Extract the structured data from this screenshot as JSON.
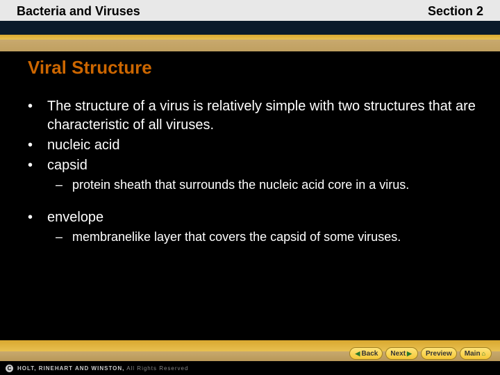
{
  "header": {
    "left": "Bacteria and Viruses",
    "right": "Section 2"
  },
  "title": "Viral Structure",
  "bullets": [
    {
      "level": 1,
      "text": "The structure of a virus is relatively simple with two structures that are characteristic of all viruses."
    },
    {
      "level": 1,
      "text": "nucleic acid"
    },
    {
      "level": 1,
      "text": "capsid"
    },
    {
      "level": 2,
      "text": "protein sheath that surrounds the nucleic acid core in a virus."
    },
    {
      "level": 0,
      "text": ""
    },
    {
      "level": 1,
      "text": "envelope"
    },
    {
      "level": 2,
      "text": "membranelike layer that covers the capsid of some viruses."
    }
  ],
  "nav": {
    "back": "Back",
    "next": "Next",
    "preview": "Preview",
    "main": "Main"
  },
  "footer": {
    "publisher": "HOLT, RINEHART AND WINSTON,",
    "rights": " All Rights Reserved"
  },
  "colors": {
    "title_color": "#cc6600",
    "text_color": "#ffffff",
    "background": "#000000",
    "strip_yellow": "#e0b840",
    "strip_tan": "#c8a96e",
    "nav_btn_bg": "#f8d550",
    "copyright_grey": "#888888"
  },
  "typography": {
    "header_fontsize": 18,
    "title_fontsize": 26,
    "body_fontsize": 20,
    "sub_fontsize": 18,
    "footer_fontsize": 8
  }
}
